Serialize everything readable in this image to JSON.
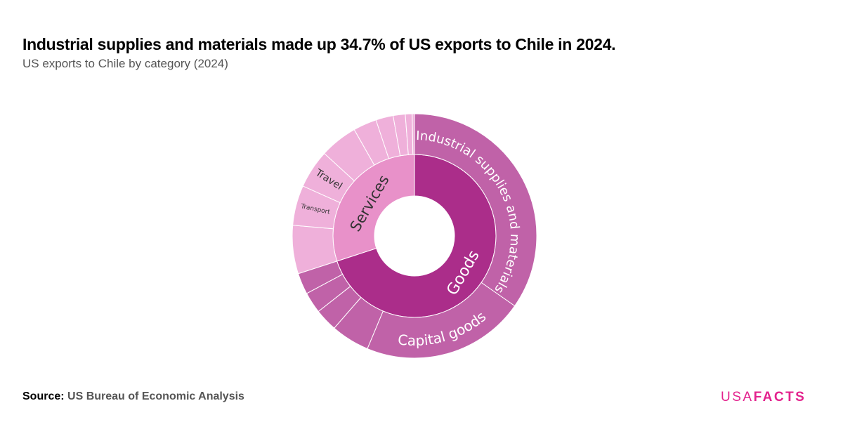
{
  "title": "Industrial supplies and materials made up 34.7% of US exports to Chile in 2024.",
  "subtitle": "US exports to Chile by category (2024)",
  "source": {
    "label": "Source:",
    "text": "US Bureau of Economic Analysis"
  },
  "logo": {
    "light": "USA",
    "bold": "FACTS"
  },
  "chart_data": {
    "type": "sunburst",
    "unit": "percent of total",
    "colors": {
      "goods_inner": "#ab2d8a",
      "goods_outer": "#c062a8",
      "services_inner": "#e891c9",
      "services_outer": "#efb0da"
    },
    "series": [
      {
        "name": "Goods",
        "value": 70.0,
        "children": [
          {
            "name": "Industrial supplies and materials",
            "value": 34.7
          },
          {
            "name": "Capital goods",
            "value": 21.6
          },
          {
            "name": "",
            "value": 5.1
          },
          {
            "name": "",
            "value": 3.0
          },
          {
            "name": "",
            "value": 2.8
          },
          {
            "name": "",
            "value": 2.8
          }
        ]
      },
      {
        "name": "Services",
        "value": 30.0,
        "children": [
          {
            "name": "",
            "value": 6.4
          },
          {
            "name": "Transport",
            "value": 5.3
          },
          {
            "name": "Travel",
            "value": 5.1
          },
          {
            "name": "",
            "value": 5.0
          },
          {
            "name": "",
            "value": 3.1
          },
          {
            "name": "",
            "value": 2.3
          },
          {
            "name": "",
            "value": 1.6
          },
          {
            "name": "",
            "value": 0.9
          },
          {
            "name": "",
            "value": 0.3
          }
        ]
      }
    ]
  }
}
